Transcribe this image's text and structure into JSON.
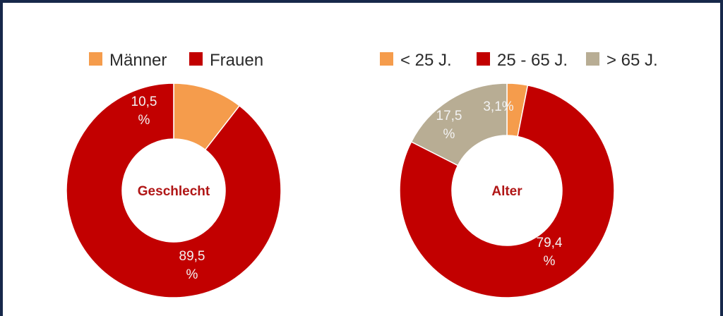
{
  "chart_data": [
    {
      "type": "pie",
      "title": "Geschlecht",
      "categories": [
        "Männer",
        "Frauen"
      ],
      "values": [
        10.5,
        89.5
      ],
      "labels": [
        [
          "10,5",
          "%"
        ],
        [
          "89,5",
          "%"
        ]
      ],
      "colors": [
        "#f59c4c",
        "#c20000"
      ],
      "legend": [
        "Männer",
        "Frauen"
      ],
      "legend_position": "top"
    },
    {
      "type": "pie",
      "title": "Alter",
      "categories": [
        "< 25 J.",
        "25 - 65 J.",
        "> 65 J."
      ],
      "values": [
        3.1,
        79.4,
        17.5
      ],
      "labels": [
        [
          "3,1%"
        ],
        [
          "79,4",
          "%"
        ],
        [
          "17,5",
          "%"
        ]
      ],
      "colors": [
        "#f59c4c",
        "#c20000",
        "#b8ad94"
      ],
      "legend": [
        "< 25 J.",
        "25 - 65 J.",
        "> 65 J."
      ],
      "legend_position": "top"
    }
  ]
}
